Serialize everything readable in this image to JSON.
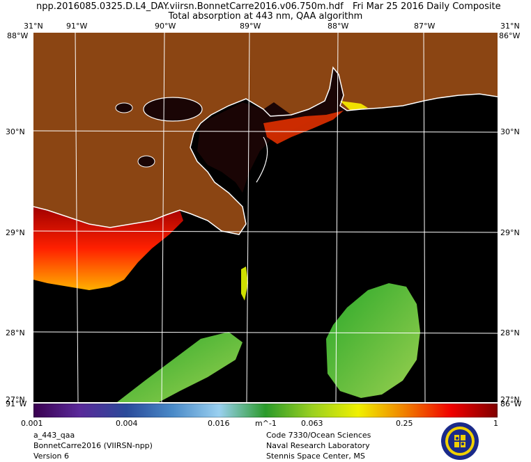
{
  "header": {
    "filename": "npp.2016085.0325.D.L4_DAY.viirsn.BonnetCarre2016.v06.750m.hdf",
    "date": "Fri Mar 25 2016 Daily Composite",
    "subtitle": "Total absorption at 443 nm, QAA algorithm"
  },
  "axes": {
    "lon_labels": [
      "91°W",
      "90°W",
      "89°W",
      "88°W",
      "87°W"
    ],
    "lat_labels": [
      "30°N",
      "29°N",
      "28°N"
    ],
    "corner_top_left": "31°N",
    "corner_top_right": "31°N",
    "corner_bottom_left": "27°N",
    "corner_bottom_right": "27°N",
    "corner_overlay_top_left": "88°W",
    "corner_overlay_top_right": "86°W",
    "corner_overlay_bottom_left": "91°W",
    "corner_overlay_bottom_right": "86°W"
  },
  "colorbar": {
    "labels": [
      "0.001",
      "0.004",
      "0.016",
      "0.063",
      "0.25",
      "1"
    ],
    "unit": "m^-1",
    "colors": [
      "#3a0050",
      "#5a2a9a",
      "#2a4a9a",
      "#4a8ac8",
      "#9ad0f0",
      "#2a9a2a",
      "#9ad020",
      "#f0f000",
      "#f08000",
      "#f00000",
      "#800000"
    ]
  },
  "footer": {
    "left": [
      "a_443_qaa",
      "BonnetCarre2016 (VIIRSN-npp)",
      "Version 6"
    ],
    "right": [
      "Code 7330/Ocean Sciences",
      "Naval Research Laboratory",
      "Stennis Space Center, MS"
    ]
  },
  "colors": {
    "land": "#8b4513",
    "water": "#000000",
    "coastline": "#ffffff",
    "grid": "#ffffff"
  }
}
